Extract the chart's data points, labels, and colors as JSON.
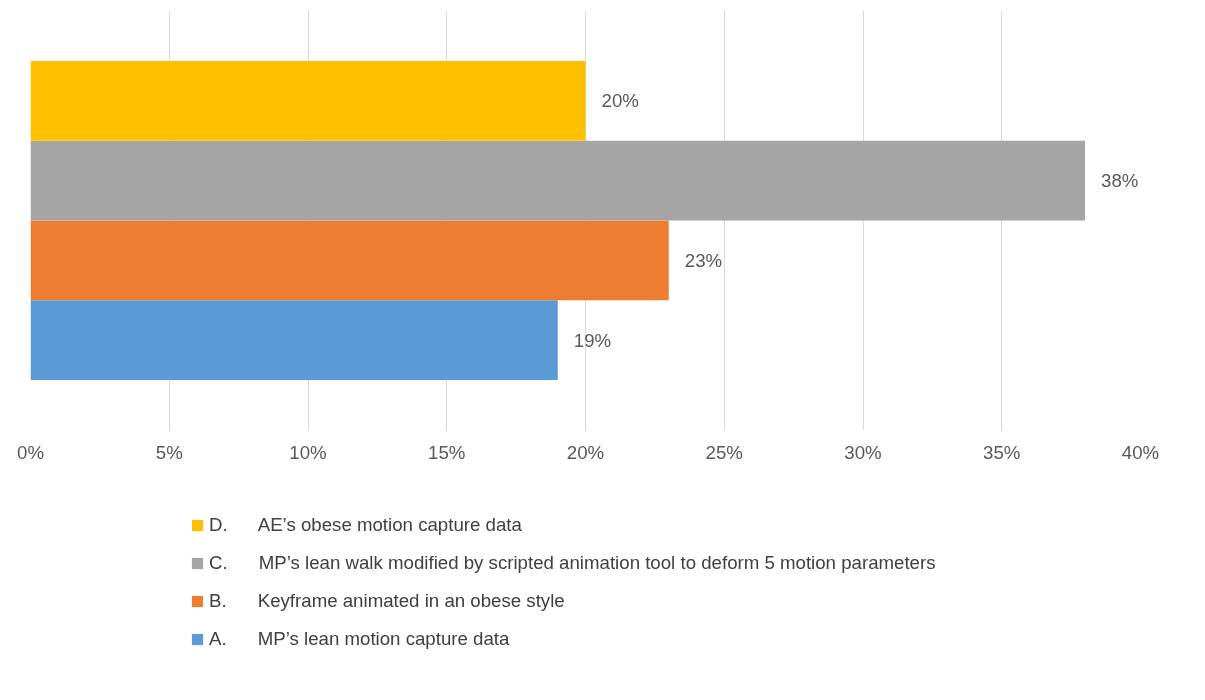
{
  "chart_data": {
    "type": "bar",
    "orientation": "horizontal",
    "categories": [
      null
    ],
    "series": [
      {
        "name": "A.      MP’s lean motion capture data",
        "color": "#5b9bd5",
        "values": [
          19
        ],
        "value_labels": [
          "19%"
        ]
      },
      {
        "name": "B.      Keyframe animated in an obese style",
        "color": "#ed7d31",
        "values": [
          23
        ],
        "value_labels": [
          "23%"
        ]
      },
      {
        "name": "C.      MP’s lean walk modified by scripted animation tool to deform 5 motion parameters",
        "color": "#a5a5a5",
        "values": [
          38
        ],
        "value_labels": [
          "38%"
        ]
      },
      {
        "name": "D.      AE’s obese motion capture data",
        "color": "#ffc000",
        "values": [
          20
        ],
        "value_labels": [
          "20%"
        ]
      }
    ],
    "xlim": [
      0,
      40
    ],
    "xticks": [
      {
        "value": 0,
        "label": "0%"
      },
      {
        "value": 5,
        "label": "5%"
      },
      {
        "value": 10,
        "label": "10%"
      },
      {
        "value": 15,
        "label": "15%"
      },
      {
        "value": 20,
        "label": "20%"
      },
      {
        "value": 25,
        "label": "25%"
      },
      {
        "value": 30,
        "label": "30%"
      },
      {
        "value": 35,
        "label": "35%"
      },
      {
        "value": 40,
        "label": "40%"
      }
    ],
    "grid": "x",
    "legend": "bottom"
  }
}
